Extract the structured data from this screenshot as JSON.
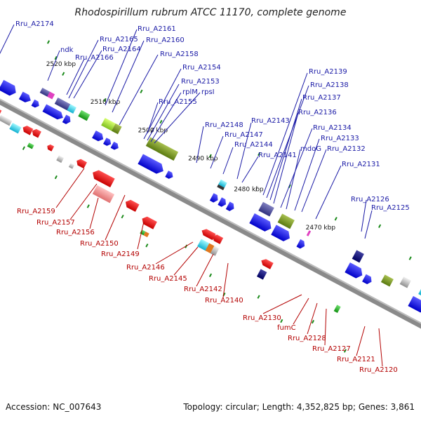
{
  "title": "Rhodospirillum rubrum ATCC 11170, complete genome",
  "footer": {
    "accession": "Accession: NC_007643",
    "topology": "Topology: circular; Length: 4,352,825 bp; Genes: 3,861"
  },
  "scale_labels": [
    "2520 kbp",
    "2510 kbp",
    "2500 kbp",
    "2490 kbp",
    "2480 kbp",
    "2470 kbp"
  ],
  "top_labels": [
    "Rru_A2174",
    "ndk",
    "Rru_A2166",
    "Rru_A2165",
    "Rru_A2164",
    "Rru_A2161",
    "Rru_A2160",
    "Rru_A2158",
    "Rru_A2154",
    "Rru_A2153",
    "rplM",
    "rpsI",
    "Rru_A2155",
    "Rru_A2148",
    "Rru_A2147",
    "Rru_A2144",
    "Rru_A2143",
    "Rru_A2141",
    "Rru_A2139",
    "Rru_A2138",
    "Rru_A2137",
    "Rru_A2136",
    "Rru_A2134",
    "mdoG",
    "Rru_A2133",
    "Rru_A2132",
    "Rru_A2131",
    "Rru_A2126",
    "Rru_A2125"
  ],
  "bottom_labels": [
    "Rru_A2159",
    "Rru_A2157",
    "Rru_A2156",
    "Rru_A2150",
    "Rru_A2149",
    "Rru_A2146",
    "Rru_A2145",
    "Rru_A2142",
    "Rru_A2140",
    "Rru_A2130",
    "fumC",
    "Rru_A2128",
    "Rru_A2127",
    "Rru_A2121",
    "Rru_A2120"
  ],
  "colors": {
    "forward": "#1515d6",
    "reverse": "#e01010",
    "backbone": "#8a8a8a",
    "tick": "#1a8a1a"
  }
}
